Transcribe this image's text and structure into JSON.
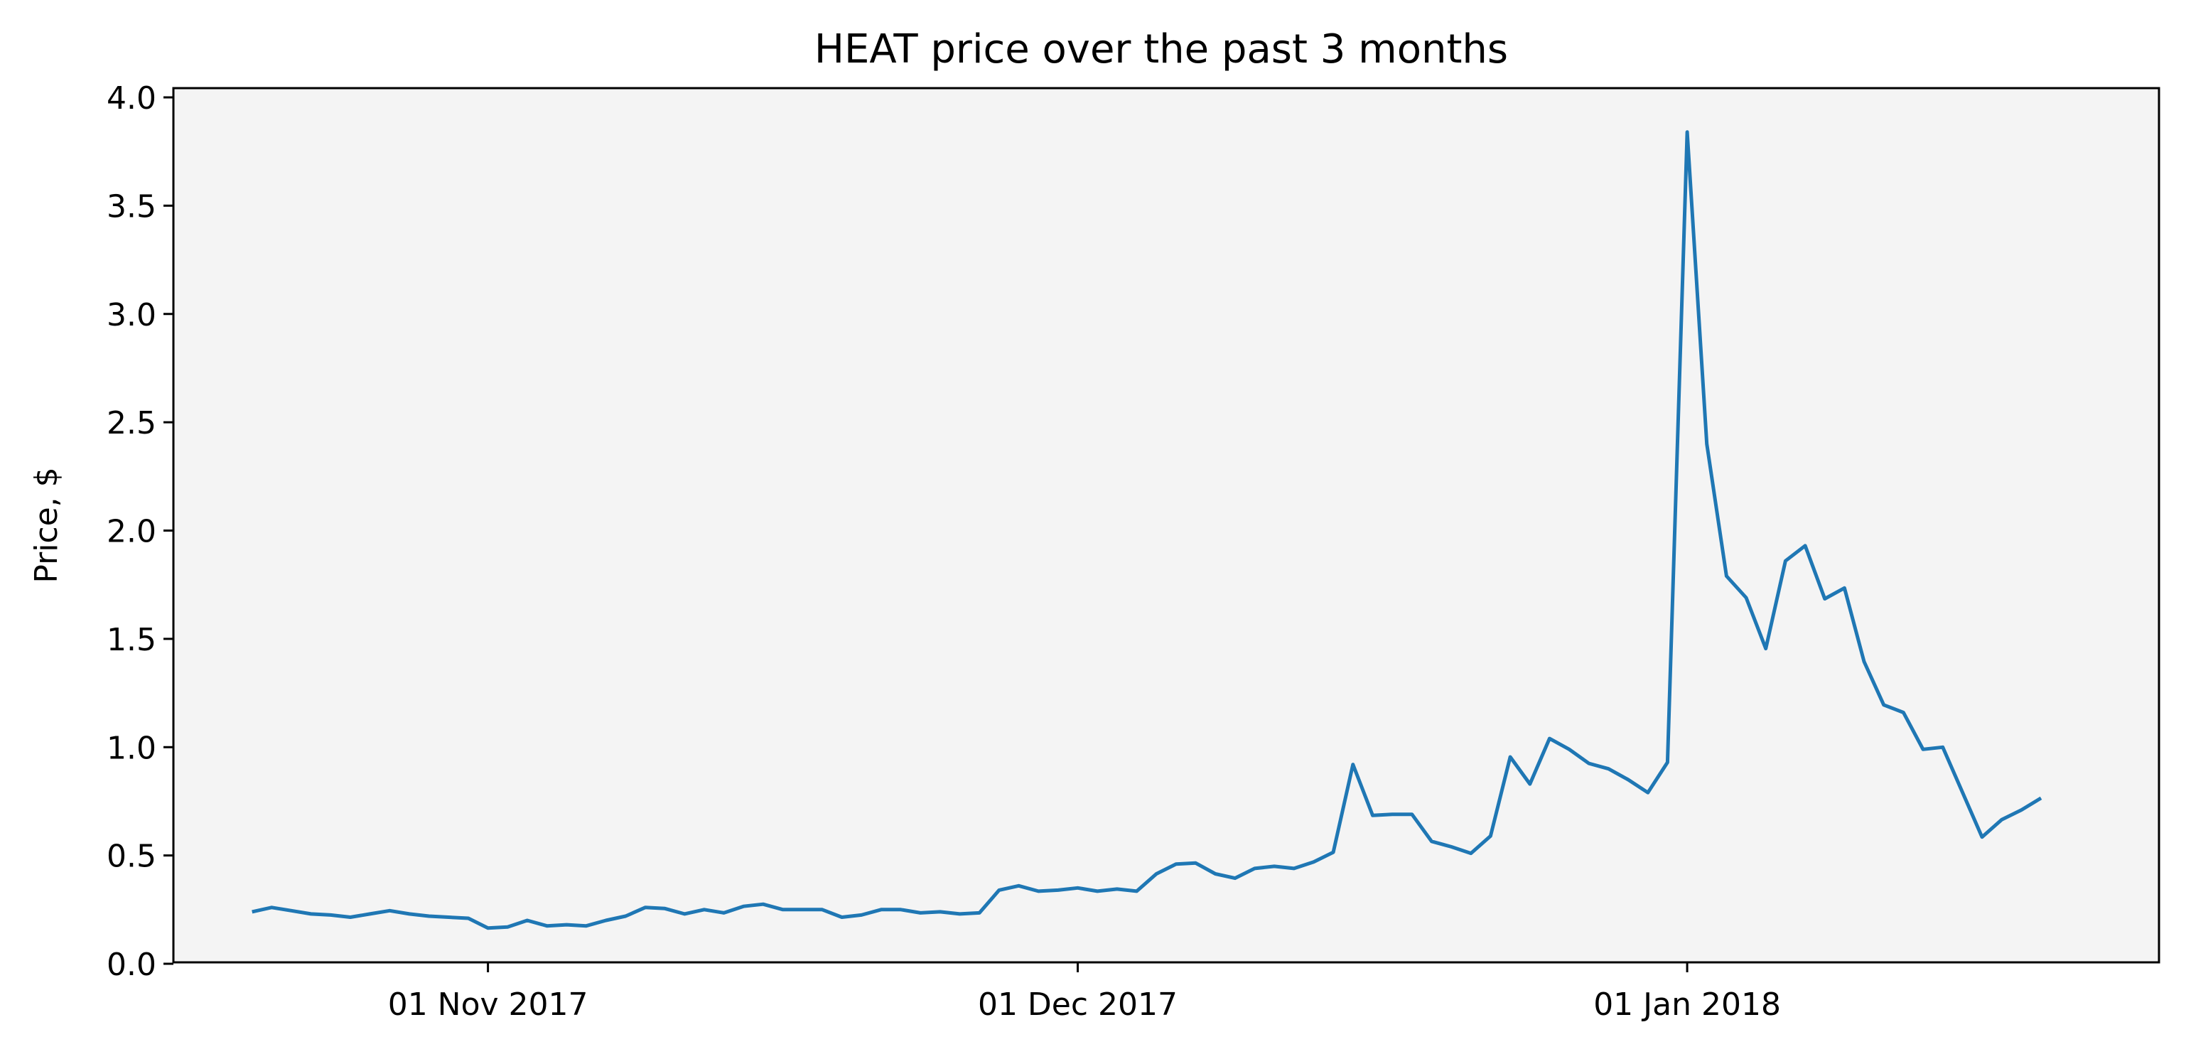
{
  "chart_data": {
    "type": "line",
    "title": "HEAT price over the past 3 months",
    "xlabel": "",
    "ylabel": "Price, $",
    "ylim": [
      0.0,
      4.0
    ],
    "xlim": [
      "2017-10-16",
      "2018-01-25"
    ],
    "grid": false,
    "colors": {
      "line": "#1f77b4",
      "plot_bg": "#f4f4f4",
      "axes": "#000000"
    },
    "x_ticks": [
      {
        "date": "2017-11-01",
        "label": "01 Nov 2017"
      },
      {
        "date": "2017-12-01",
        "label": "01 Dec 2017"
      },
      {
        "date": "2018-01-01",
        "label": "01 Jan 2018"
      }
    ],
    "y_ticks": [
      {
        "value": 0.0,
        "label": "0.0"
      },
      {
        "value": 0.5,
        "label": "0.5"
      },
      {
        "value": 1.0,
        "label": "1.0"
      },
      {
        "value": 1.5,
        "label": "1.5"
      },
      {
        "value": 2.0,
        "label": "2.0"
      },
      {
        "value": 2.5,
        "label": "2.5"
      },
      {
        "value": 3.0,
        "label": "3.0"
      },
      {
        "value": 3.5,
        "label": "3.5"
      },
      {
        "value": 4.0,
        "label": "4.0"
      }
    ],
    "series": [
      {
        "points": [
          [
            "2017-10-20",
            0.24
          ],
          [
            "2017-10-21",
            0.26
          ],
          [
            "2017-10-22",
            0.245
          ],
          [
            "2017-10-23",
            0.23
          ],
          [
            "2017-10-24",
            0.225
          ],
          [
            "2017-10-25",
            0.215
          ],
          [
            "2017-10-26",
            0.23
          ],
          [
            "2017-10-27",
            0.245
          ],
          [
            "2017-10-28",
            0.23
          ],
          [
            "2017-10-29",
            0.22
          ],
          [
            "2017-10-30",
            0.215
          ],
          [
            "2017-10-31",
            0.21
          ],
          [
            "2017-11-01",
            0.165
          ],
          [
            "2017-11-02",
            0.17
          ],
          [
            "2017-11-03",
            0.2
          ],
          [
            "2017-11-04",
            0.175
          ],
          [
            "2017-11-05",
            0.18
          ],
          [
            "2017-11-06",
            0.175
          ],
          [
            "2017-11-07",
            0.2
          ],
          [
            "2017-11-08",
            0.22
          ],
          [
            "2017-11-09",
            0.26
          ],
          [
            "2017-11-10",
            0.255
          ],
          [
            "2017-11-11",
            0.23
          ],
          [
            "2017-11-12",
            0.25
          ],
          [
            "2017-11-13",
            0.235
          ],
          [
            "2017-11-14",
            0.265
          ],
          [
            "2017-11-15",
            0.275
          ],
          [
            "2017-11-16",
            0.25
          ],
          [
            "2017-11-17",
            0.25
          ],
          [
            "2017-11-18",
            0.25
          ],
          [
            "2017-11-19",
            0.215
          ],
          [
            "2017-11-20",
            0.225
          ],
          [
            "2017-11-21",
            0.25
          ],
          [
            "2017-11-22",
            0.25
          ],
          [
            "2017-11-23",
            0.235
          ],
          [
            "2017-11-24",
            0.24
          ],
          [
            "2017-11-25",
            0.23
          ],
          [
            "2017-11-26",
            0.235
          ],
          [
            "2017-11-27",
            0.34
          ],
          [
            "2017-11-28",
            0.36
          ],
          [
            "2017-11-29",
            0.335
          ],
          [
            "2017-11-30",
            0.34
          ],
          [
            "2017-12-01",
            0.35
          ],
          [
            "2017-12-02",
            0.335
          ],
          [
            "2017-12-03",
            0.345
          ],
          [
            "2017-12-04",
            0.335
          ],
          [
            "2017-12-05",
            0.415
          ],
          [
            "2017-12-06",
            0.46
          ],
          [
            "2017-12-07",
            0.465
          ],
          [
            "2017-12-08",
            0.415
          ],
          [
            "2017-12-09",
            0.395
          ],
          [
            "2017-12-10",
            0.44
          ],
          [
            "2017-12-11",
            0.45
          ],
          [
            "2017-12-12",
            0.44
          ],
          [
            "2017-12-13",
            0.47
          ],
          [
            "2017-12-14",
            0.515
          ],
          [
            "2017-12-15",
            0.92
          ],
          [
            "2017-12-16",
            0.685
          ],
          [
            "2017-12-17",
            0.69
          ],
          [
            "2017-12-18",
            0.69
          ],
          [
            "2017-12-19",
            0.565
          ],
          [
            "2017-12-20",
            0.54
          ],
          [
            "2017-12-21",
            0.51
          ],
          [
            "2017-12-22",
            0.59
          ],
          [
            "2017-12-23",
            0.955
          ],
          [
            "2017-12-24",
            0.83
          ],
          [
            "2017-12-25",
            1.04
          ],
          [
            "2017-12-26",
            0.99
          ],
          [
            "2017-12-27",
            0.925
          ],
          [
            "2017-12-28",
            0.9
          ],
          [
            "2017-12-29",
            0.85
          ],
          [
            "2017-12-30",
            0.79
          ],
          [
            "2017-12-31",
            0.93
          ],
          [
            "2018-01-01",
            3.84
          ],
          [
            "2018-01-02",
            2.4
          ],
          [
            "2018-01-03",
            1.79
          ],
          [
            "2018-01-04",
            1.69
          ],
          [
            "2018-01-05",
            1.455
          ],
          [
            "2018-01-06",
            1.86
          ],
          [
            "2018-01-07",
            1.93
          ],
          [
            "2018-01-08",
            1.685
          ],
          [
            "2018-01-09",
            1.735
          ],
          [
            "2018-01-10",
            1.395
          ],
          [
            "2018-01-11",
            1.195
          ],
          [
            "2018-01-12",
            1.16
          ],
          [
            "2018-01-13",
            0.99
          ],
          [
            "2018-01-14",
            1.0
          ],
          [
            "2018-01-16",
            0.585
          ],
          [
            "2018-01-17",
            0.665
          ],
          [
            "2018-01-18",
            0.71
          ],
          [
            "2018-01-19",
            0.765
          ]
        ]
      }
    ]
  }
}
